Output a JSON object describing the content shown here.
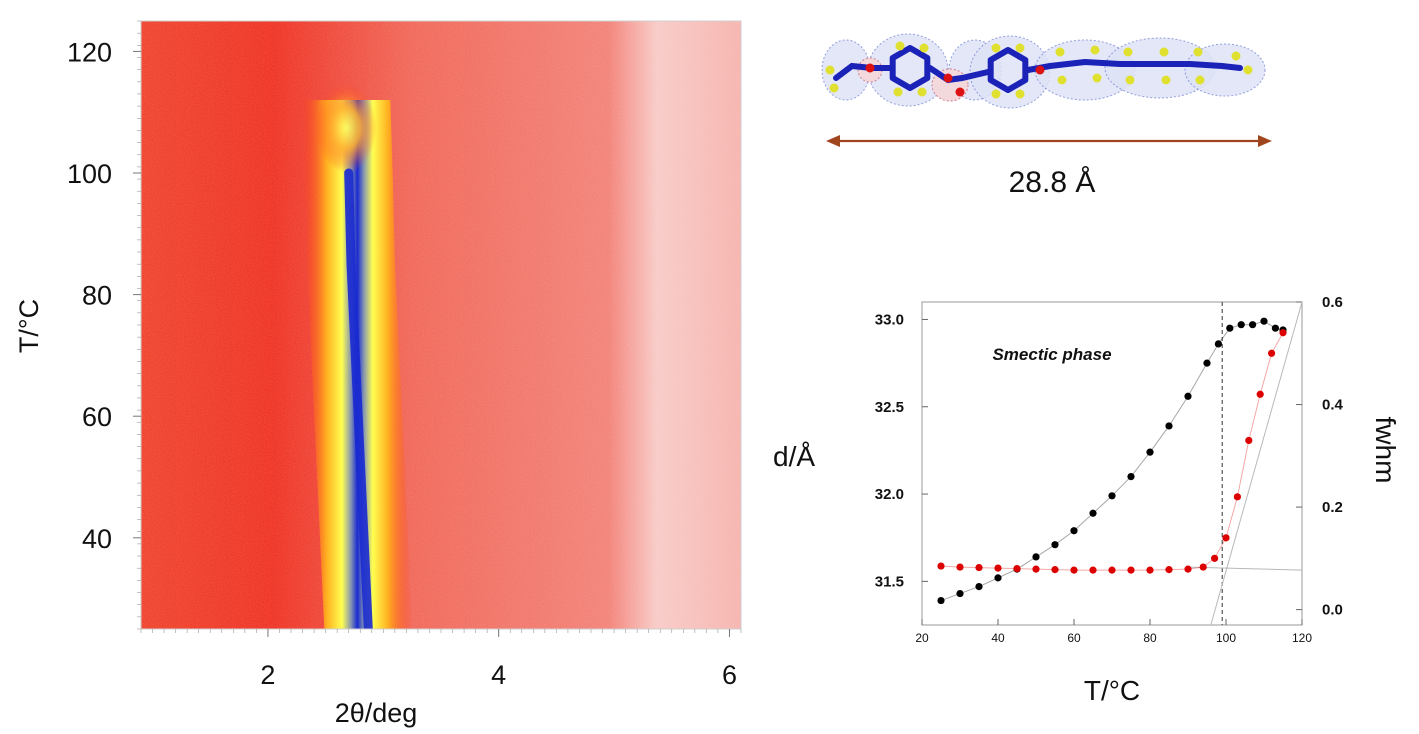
{
  "chart_data": [
    {
      "type": "heatmap",
      "title": "",
      "xlabel": "2θ/deg",
      "ylabel": "T/°C",
      "xlim": [
        0.9,
        6.1
      ],
      "ylim": [
        25,
        125
      ],
      "xticks": [
        2,
        4,
        6
      ],
      "yticks": [
        40,
        60,
        80,
        100,
        120
      ],
      "peak_ridge": {
        "x": [
          2.87,
          2.82,
          2.77,
          2.72,
          2.7,
          2.68
        ],
        "y": [
          25,
          45,
          65,
          85,
          100,
          112
        ]
      },
      "colors": {
        "background": "#ee2a22",
        "peak_edge": "#ffe066",
        "peak_core": "#1a2ad0"
      }
    },
    {
      "type": "scatter",
      "title": "",
      "annotation": "Smectic phase",
      "xlabel": "T/°C",
      "ylabel": "d/Å",
      "y2label": "fwhm",
      "xlim": [
        20,
        120
      ],
      "ylim": [
        31.25,
        33.1
      ],
      "y2lim": [
        -0.03,
        0.6
      ],
      "xticks": [
        20,
        40,
        60,
        80,
        100,
        120
      ],
      "xticklabels": [
        "20",
        "40",
        "60",
        "80",
        "100",
        "120"
      ],
      "yticks": [
        31.5,
        32.0,
        32.5,
        33.0
      ],
      "yticklabels": [
        "31.5",
        "32.0",
        "32.5",
        "33.0"
      ],
      "y2ticks": [
        0.0,
        0.2,
        0.4,
        0.6
      ],
      "y2ticklabels": [
        "0.0",
        "0.2",
        "0.4",
        "0.6"
      ],
      "transition_line_x": 99,
      "series": [
        {
          "color": "#000000",
          "axis": "left",
          "x": [
            25,
            30,
            35,
            40,
            45,
            50,
            55,
            60,
            65,
            70,
            75,
            80,
            85,
            90,
            95,
            98,
            101,
            104,
            107,
            110,
            113,
            115
          ],
          "y": [
            31.39,
            31.43,
            31.47,
            31.52,
            31.57,
            31.64,
            31.71,
            31.79,
            31.89,
            31.99,
            32.1,
            32.24,
            32.39,
            32.56,
            32.75,
            32.86,
            32.95,
            32.97,
            32.97,
            32.99,
            32.95,
            32.94
          ]
        },
        {
          "color": "#dd0000",
          "axis": "right",
          "x": [
            25,
            30,
            35,
            40,
            45,
            50,
            55,
            60,
            65,
            70,
            75,
            80,
            85,
            90,
            94,
            97,
            100,
            103,
            106,
            109,
            112,
            115
          ],
          "y": [
            0.085,
            0.083,
            0.082,
            0.081,
            0.08,
            0.079,
            0.078,
            0.077,
            0.077,
            0.077,
            0.077,
            0.077,
            0.078,
            0.079,
            0.083,
            0.1,
            0.14,
            0.22,
            0.33,
            0.42,
            0.5,
            0.54
          ]
        }
      ]
    }
  ],
  "molecule": {
    "length_label": "28.8 Å",
    "colors": {
      "bond": "#1a22b8",
      "oxygen": "#dd1111",
      "hydrogen": "#e0e030",
      "surface": "#8090d8"
    }
  }
}
